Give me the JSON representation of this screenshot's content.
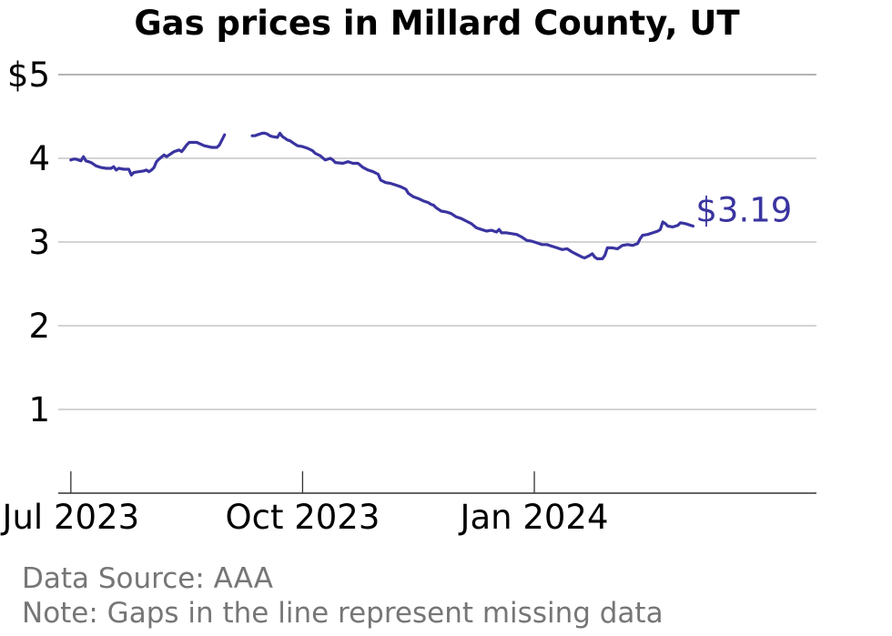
{
  "chart_data": {
    "type": "line",
    "title": "Gas prices in Millard County, UT",
    "xlabel": "",
    "ylabel": "",
    "ylim": [
      0,
      5
    ],
    "yticks": [
      {
        "value": 1,
        "label": "1"
      },
      {
        "value": 2,
        "label": "2"
      },
      {
        "value": 3,
        "label": "3"
      },
      {
        "value": 4,
        "label": "4"
      },
      {
        "value": 5,
        "label": "$5"
      }
    ],
    "xlim": [
      "2023-06-26",
      "2024-04-22"
    ],
    "xticks": [
      {
        "date": "2023-07-01",
        "label": "Jul 2023"
      },
      {
        "date": "2023-10-01",
        "label": "Oct 2023"
      },
      {
        "date": "2024-01-01",
        "label": "Jan 2024"
      }
    ],
    "grid": true,
    "line_color": "#3a34a0",
    "end_label": "$3.19",
    "series": [
      {
        "name": "",
        "segments": [
          [
            [
              "2023-07-01",
              3.98
            ],
            [
              "2023-07-02",
              3.99
            ],
            [
              "2023-07-03",
              3.99
            ],
            [
              "2023-07-04",
              3.98
            ],
            [
              "2023-07-05",
              3.97
            ],
            [
              "2023-07-06",
              4.02
            ],
            [
              "2023-07-07",
              3.97
            ],
            [
              "2023-07-08",
              3.96
            ],
            [
              "2023-07-09",
              3.95
            ],
            [
              "2023-07-11",
              3.91
            ],
            [
              "2023-07-13",
              3.89
            ],
            [
              "2023-07-15",
              3.88
            ],
            [
              "2023-07-17",
              3.88
            ],
            [
              "2023-07-18",
              3.9
            ],
            [
              "2023-07-19",
              3.86
            ],
            [
              "2023-07-20",
              3.88
            ],
            [
              "2023-07-22",
              3.87
            ],
            [
              "2023-07-24",
              3.87
            ],
            [
              "2023-07-25",
              3.8
            ],
            [
              "2023-07-26",
              3.83
            ],
            [
              "2023-07-28",
              3.84
            ],
            [
              "2023-07-30",
              3.85
            ],
            [
              "2023-07-31",
              3.86
            ],
            [
              "2023-08-01",
              3.84
            ],
            [
              "2023-08-02",
              3.86
            ],
            [
              "2023-08-03",
              3.89
            ],
            [
              "2023-08-04",
              3.96
            ],
            [
              "2023-08-05",
              3.99
            ],
            [
              "2023-08-07",
              4.04
            ],
            [
              "2023-08-08",
              4.02
            ],
            [
              "2023-08-09",
              4.04
            ],
            [
              "2023-08-10",
              4.06
            ],
            [
              "2023-08-11",
              4.08
            ],
            [
              "2023-08-12",
              4.09
            ],
            [
              "2023-08-13",
              4.1
            ],
            [
              "2023-08-14",
              4.08
            ],
            [
              "2023-08-15",
              4.12
            ],
            [
              "2023-08-16",
              4.16
            ],
            [
              "2023-08-17",
              4.19
            ],
            [
              "2023-08-20",
              4.19
            ],
            [
              "2023-08-23",
              4.15
            ],
            [
              "2023-08-26",
              4.13
            ],
            [
              "2023-08-28",
              4.13
            ],
            [
              "2023-08-29",
              4.16
            ],
            [
              "2023-08-31",
              4.28
            ]
          ],
          [
            [
              "2023-09-11",
              4.27
            ],
            [
              "2023-09-12",
              4.27
            ],
            [
              "2023-09-13",
              4.28
            ],
            [
              "2023-09-14",
              4.29
            ],
            [
              "2023-09-15",
              4.3
            ],
            [
              "2023-09-16",
              4.3
            ],
            [
              "2023-09-17",
              4.29
            ],
            [
              "2023-09-18",
              4.27
            ],
            [
              "2023-09-19",
              4.26
            ],
            [
              "2023-09-21",
              4.25
            ],
            [
              "2023-09-22",
              4.3
            ],
            [
              "2023-09-23",
              4.26
            ],
            [
              "2023-09-25",
              4.22
            ],
            [
              "2023-09-26",
              4.21
            ],
            [
              "2023-09-28",
              4.17
            ],
            [
              "2023-09-29",
              4.15
            ],
            [
              "2023-10-01",
              4.14
            ],
            [
              "2023-10-03",
              4.12
            ],
            [
              "2023-10-05",
              4.09
            ],
            [
              "2023-10-06",
              4.06
            ],
            [
              "2023-10-08",
              4.03
            ],
            [
              "2023-10-10",
              3.98
            ],
            [
              "2023-10-12",
              4.0
            ],
            [
              "2023-10-13",
              3.98
            ],
            [
              "2023-10-14",
              3.95
            ],
            [
              "2023-10-17",
              3.94
            ],
            [
              "2023-10-19",
              3.96
            ],
            [
              "2023-10-21",
              3.94
            ],
            [
              "2023-10-23",
              3.94
            ],
            [
              "2023-10-25",
              3.89
            ],
            [
              "2023-10-27",
              3.86
            ],
            [
              "2023-10-29",
              3.84
            ],
            [
              "2023-10-31",
              3.81
            ],
            [
              "2023-11-01",
              3.74
            ],
            [
              "2023-11-03",
              3.71
            ],
            [
              "2023-11-05",
              3.7
            ],
            [
              "2023-11-07",
              3.68
            ],
            [
              "2023-11-09",
              3.66
            ],
            [
              "2023-11-11",
              3.63
            ],
            [
              "2023-11-12",
              3.58
            ],
            [
              "2023-11-14",
              3.54
            ],
            [
              "2023-11-16",
              3.52
            ],
            [
              "2023-11-18",
              3.49
            ],
            [
              "2023-11-20",
              3.47
            ],
            [
              "2023-11-21",
              3.45
            ],
            [
              "2023-11-22",
              3.44
            ],
            [
              "2023-11-23",
              3.41
            ],
            [
              "2023-11-25",
              3.37
            ],
            [
              "2023-11-27",
              3.36
            ],
            [
              "2023-11-29",
              3.34
            ],
            [
              "2023-12-01",
              3.3
            ],
            [
              "2023-12-03",
              3.28
            ],
            [
              "2023-12-05",
              3.25
            ],
            [
              "2023-12-07",
              3.22
            ],
            [
              "2023-12-09",
              3.17
            ],
            [
              "2023-12-11",
              3.15
            ],
            [
              "2023-12-13",
              3.13
            ],
            [
              "2023-12-15",
              3.14
            ],
            [
              "2023-12-17",
              3.12
            ],
            [
              "2023-12-18",
              3.15
            ],
            [
              "2023-12-19",
              3.11
            ],
            [
              "2023-12-21",
              3.11
            ],
            [
              "2023-12-23",
              3.1
            ],
            [
              "2023-12-25",
              3.09
            ],
            [
              "2023-12-27",
              3.06
            ],
            [
              "2023-12-29",
              3.02
            ],
            [
              "2023-12-31",
              3.01
            ],
            [
              "2024-01-02",
              2.99
            ],
            [
              "2024-01-04",
              2.97
            ],
            [
              "2024-01-06",
              2.97
            ],
            [
              "2024-01-08",
              2.95
            ],
            [
              "2024-01-10",
              2.93
            ],
            [
              "2024-01-12",
              2.91
            ],
            [
              "2024-01-14",
              2.92
            ],
            [
              "2024-01-16",
              2.88
            ],
            [
              "2024-01-18",
              2.85
            ],
            [
              "2024-01-20",
              2.82
            ],
            [
              "2024-01-21",
              2.81
            ],
            [
              "2024-01-23",
              2.84
            ],
            [
              "2024-01-24",
              2.86
            ],
            [
              "2024-01-25",
              2.82
            ],
            [
              "2024-01-26",
              2.8
            ],
            [
              "2024-01-28",
              2.8
            ],
            [
              "2024-01-29",
              2.84
            ],
            [
              "2024-01-30",
              2.93
            ],
            [
              "2024-02-01",
              2.93
            ],
            [
              "2024-02-03",
              2.92
            ],
            [
              "2024-02-05",
              2.96
            ],
            [
              "2024-02-07",
              2.97
            ],
            [
              "2024-02-09",
              2.96
            ],
            [
              "2024-02-11",
              2.98
            ],
            [
              "2024-02-12",
              3.04
            ],
            [
              "2024-02-13",
              3.08
            ],
            [
              "2024-02-15",
              3.09
            ],
            [
              "2024-02-17",
              3.11
            ],
            [
              "2024-02-19",
              3.13
            ],
            [
              "2024-02-20",
              3.15
            ],
            [
              "2024-02-21",
              3.24
            ],
            [
              "2024-02-22",
              3.22
            ],
            [
              "2024-02-23",
              3.19
            ],
            [
              "2024-02-25",
              3.18
            ],
            [
              "2024-02-27",
              3.2
            ],
            [
              "2024-02-28",
              3.23
            ],
            [
              "2024-03-01",
              3.22
            ],
            [
              "2024-03-04",
              3.19
            ]
          ]
        ]
      }
    ],
    "annotations": [
      "Data Source: AAA",
      "Note: Gaps in the line represent missing data"
    ]
  }
}
